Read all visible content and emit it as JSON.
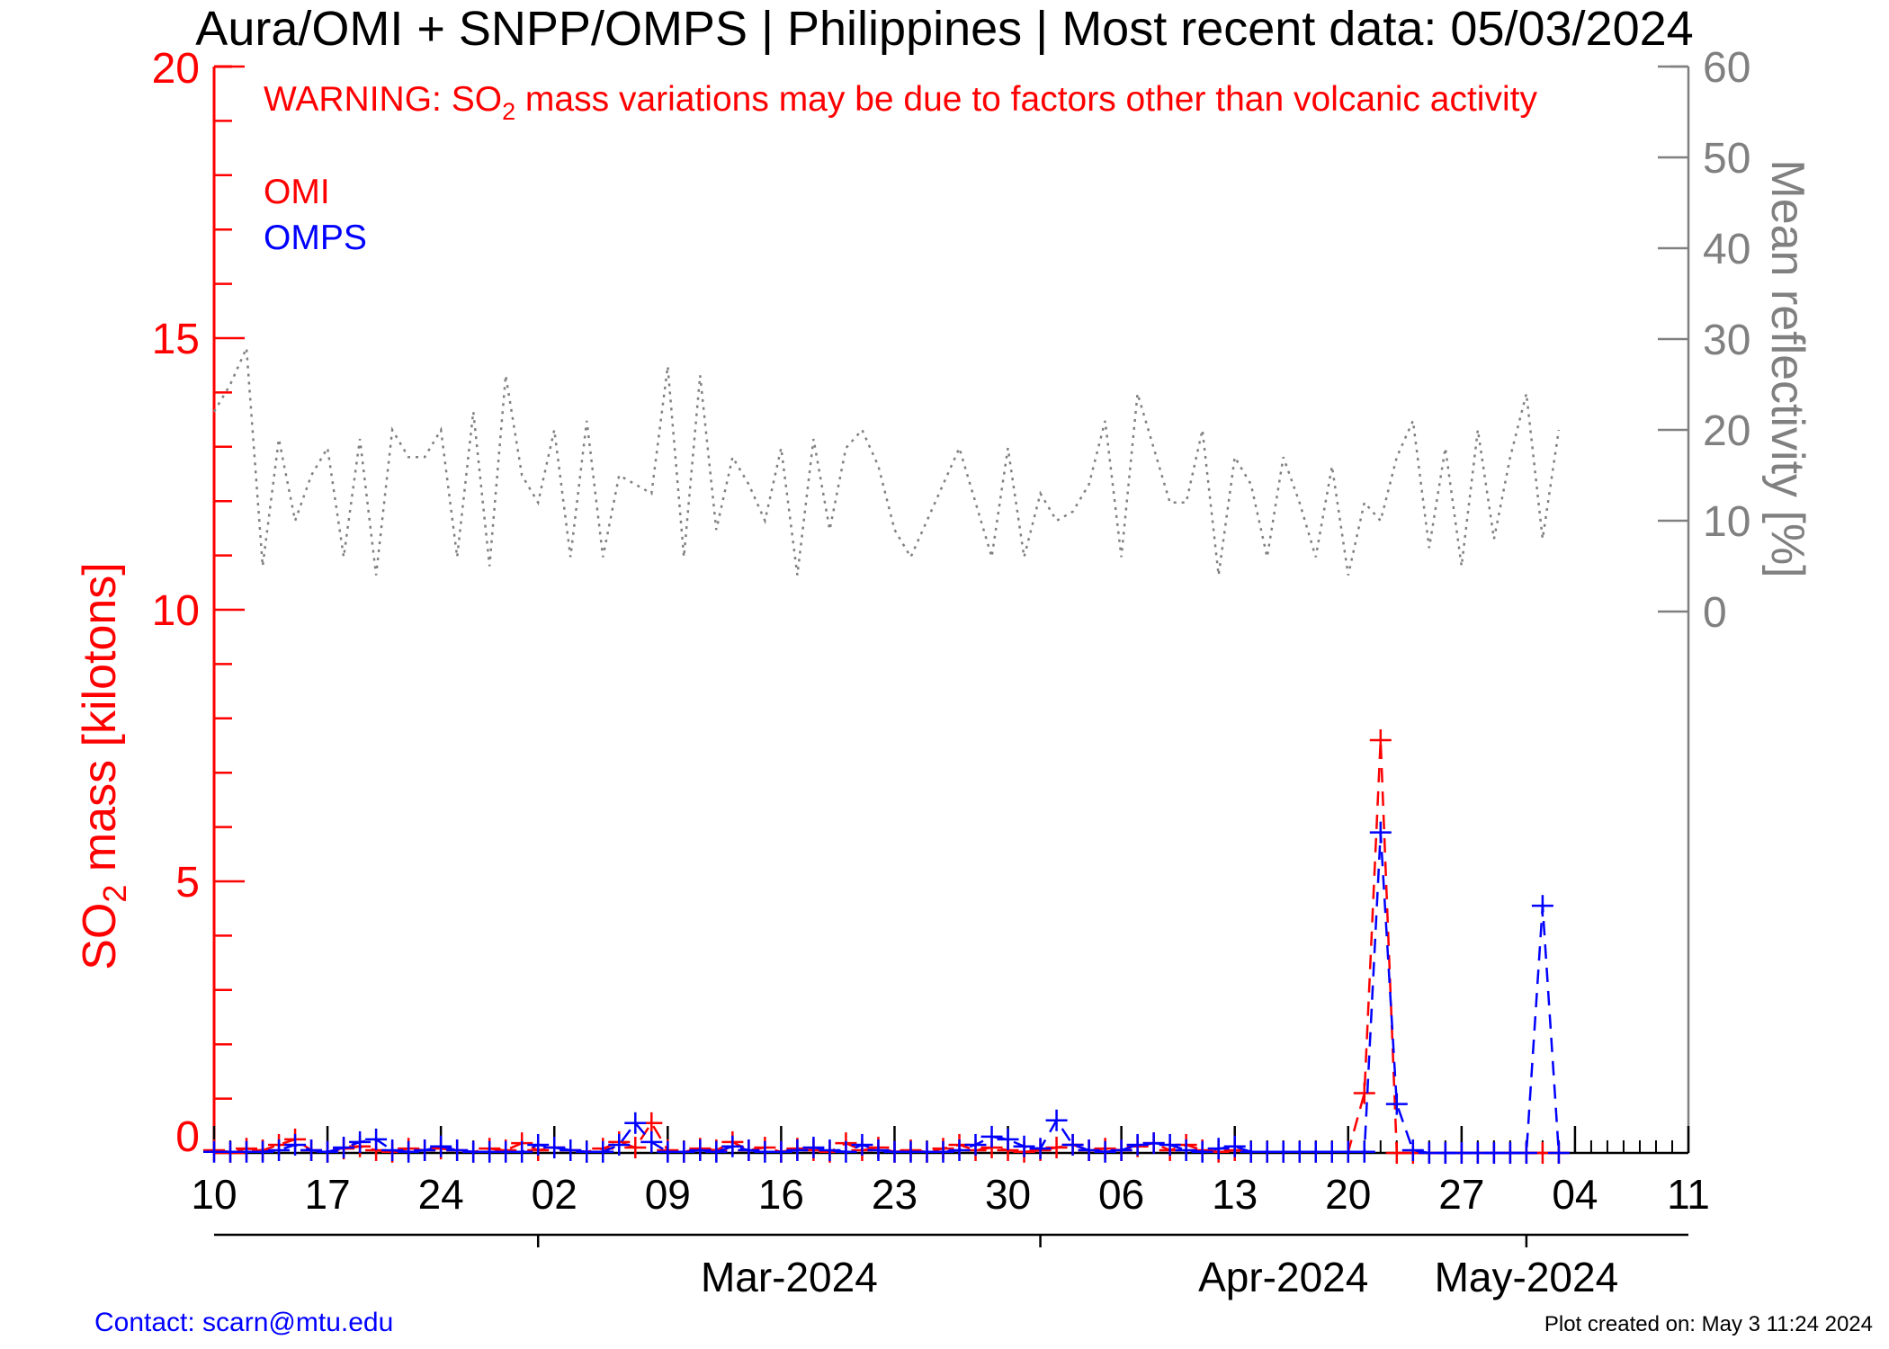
{
  "title": "Aura/OMI + SNPP/OMPS | Philippines | Most recent data: 05/03/2024",
  "warning": {
    "prefix": "WARNING: SO",
    "subscript": "2",
    "suffix": " mass variations may be due to factors other than volcanic activity"
  },
  "footer": {
    "contact": "Contact: scarn@mtu.edu",
    "created": "Plot created on: May  3 11:24 2024"
  },
  "colors": {
    "omi": "#ff0000",
    "omps": "#0000ff",
    "reflectivity": "#808080",
    "axis": "#000000"
  },
  "chart_data": {
    "type": "line",
    "x_axis": {
      "start": "2024-02-10",
      "end": "2024-05-11",
      "tick_labels": [
        "10",
        "17",
        "24",
        "02",
        "09",
        "16",
        "23",
        "30",
        "06",
        "13",
        "20",
        "27",
        "04",
        "11"
      ],
      "tick_dates": [
        "2024-02-10",
        "2024-02-17",
        "2024-02-24",
        "2024-03-02",
        "2024-03-09",
        "2024-03-16",
        "2024-03-23",
        "2024-03-30",
        "2024-04-06",
        "2024-04-13",
        "2024-04-20",
        "2024-04-27",
        "2024-05-04",
        "2024-05-11"
      ],
      "months": [
        {
          "label": "Mar-2024",
          "boundary": "2024-03-01"
        },
        {
          "label": "Apr-2024",
          "boundary": "2024-04-01"
        },
        {
          "label": "May-2024",
          "boundary": "2024-05-01"
        }
      ]
    },
    "y_left": {
      "label_prefix": "SO",
      "label_subscript": "2",
      "label_suffix": " mass [kilotons]",
      "ylim": [
        0,
        20
      ],
      "ticks": [
        0,
        5,
        10,
        15,
        20
      ]
    },
    "y_right": {
      "label": "Mean reflectivity [%]",
      "ylim": [
        0,
        60
      ],
      "ticks": [
        0,
        10,
        20,
        30,
        40,
        50,
        60
      ]
    },
    "series": [
      {
        "name": "OMI",
        "axis": "left",
        "style": "dashed",
        "x": [
          "2024-02-10",
          "2024-02-11",
          "2024-02-12",
          "2024-02-13",
          "2024-02-14",
          "2024-02-15",
          "2024-02-16",
          "2024-02-17",
          "2024-02-18",
          "2024-02-19",
          "2024-02-20",
          "2024-02-21",
          "2024-02-22",
          "2024-02-23",
          "2024-02-24",
          "2024-02-25",
          "2024-02-26",
          "2024-02-27",
          "2024-02-28",
          "2024-02-29",
          "2024-03-01",
          "2024-03-02",
          "2024-03-03",
          "2024-03-04",
          "2024-03-05",
          "2024-03-06",
          "2024-03-07",
          "2024-03-08",
          "2024-03-09",
          "2024-03-10",
          "2024-03-11",
          "2024-03-12",
          "2024-03-13",
          "2024-03-14",
          "2024-03-15",
          "2024-03-16",
          "2024-03-17",
          "2024-03-18",
          "2024-03-19",
          "2024-03-20",
          "2024-03-21",
          "2024-03-22",
          "2024-03-23",
          "2024-03-24",
          "2024-03-25",
          "2024-03-26",
          "2024-03-27",
          "2024-03-28",
          "2024-03-29",
          "2024-03-30",
          "2024-03-31",
          "2024-04-01",
          "2024-04-02",
          "2024-04-03",
          "2024-04-04",
          "2024-04-05",
          "2024-04-06",
          "2024-04-07",
          "2024-04-08",
          "2024-04-09",
          "2024-04-10",
          "2024-04-11",
          "2024-04-12",
          "2024-04-13",
          "2024-04-14",
          "2024-04-15",
          "2024-04-16",
          "2024-04-17",
          "2024-04-18",
          "2024-04-19",
          "2024-04-20",
          "2024-04-21",
          "2024-04-22",
          "2024-04-23",
          "2024-04-24",
          "2024-04-25",
          "2024-04-26",
          "2024-04-27",
          "2024-04-28",
          "2024-04-29",
          "2024-04-30",
          "2024-05-01",
          "2024-05-02",
          "2024-05-03"
        ],
        "values": [
          0.05,
          0.02,
          0.08,
          0.05,
          0.15,
          0.25,
          0.05,
          0.02,
          0.08,
          0.12,
          0.05,
          0.02,
          0.08,
          0.05,
          0.08,
          0.05,
          0.02,
          0.08,
          0.05,
          0.18,
          0.05,
          0.1,
          0.05,
          0.02,
          0.08,
          0.2,
          0.1,
          0.55,
          0.05,
          0.02,
          0.08,
          0.05,
          0.2,
          0.05,
          0.1,
          0.02,
          0.08,
          0.05,
          0.02,
          0.18,
          0.05,
          0.1,
          0.02,
          0.05,
          0.02,
          0.08,
          0.15,
          0.05,
          0.1,
          0.05,
          0.02,
          0.05,
          0.1,
          0.15,
          0.05,
          0.08,
          0.05,
          0.12,
          0.18,
          0.05,
          0.15,
          0.05,
          0.02,
          0.05,
          0.02,
          0.02,
          0.02,
          0.02,
          0.02,
          0.02,
          0.02,
          1.1,
          7.6,
          0.0,
          0.0,
          0.0,
          0.0,
          0.0,
          0.0,
          0.0,
          0.0,
          0.0,
          0.0,
          0.0
        ]
      },
      {
        "name": "OMPS",
        "axis": "left",
        "style": "dashed",
        "x": [
          "2024-02-10",
          "2024-02-11",
          "2024-02-12",
          "2024-02-13",
          "2024-02-14",
          "2024-02-15",
          "2024-02-16",
          "2024-02-17",
          "2024-02-18",
          "2024-02-19",
          "2024-02-20",
          "2024-02-21",
          "2024-02-22",
          "2024-02-23",
          "2024-02-24",
          "2024-02-25",
          "2024-02-26",
          "2024-02-27",
          "2024-02-28",
          "2024-02-29",
          "2024-03-01",
          "2024-03-02",
          "2024-03-03",
          "2024-03-04",
          "2024-03-05",
          "2024-03-06",
          "2024-03-07",
          "2024-03-08",
          "2024-03-09",
          "2024-03-10",
          "2024-03-11",
          "2024-03-12",
          "2024-03-13",
          "2024-03-14",
          "2024-03-15",
          "2024-03-16",
          "2024-03-17",
          "2024-03-18",
          "2024-03-19",
          "2024-03-20",
          "2024-03-21",
          "2024-03-22",
          "2024-03-23",
          "2024-03-24",
          "2024-03-25",
          "2024-03-26",
          "2024-03-27",
          "2024-03-28",
          "2024-03-29",
          "2024-03-30",
          "2024-03-31",
          "2024-04-01",
          "2024-04-02",
          "2024-04-03",
          "2024-04-04",
          "2024-04-05",
          "2024-04-06",
          "2024-04-07",
          "2024-04-08",
          "2024-04-09",
          "2024-04-10",
          "2024-04-11",
          "2024-04-12",
          "2024-04-13",
          "2024-04-14",
          "2024-04-15",
          "2024-04-16",
          "2024-04-17",
          "2024-04-18",
          "2024-04-19",
          "2024-04-20",
          "2024-04-21",
          "2024-04-22",
          "2024-04-23",
          "2024-04-24",
          "2024-04-25",
          "2024-04-26",
          "2024-04-27",
          "2024-04-28",
          "2024-04-29",
          "2024-04-30",
          "2024-05-01",
          "2024-05-02",
          "2024-05-03"
        ],
        "values": [
          0.02,
          0.02,
          0.02,
          0.02,
          0.05,
          0.15,
          0.05,
          0.02,
          0.1,
          0.2,
          0.25,
          0.05,
          0.02,
          0.05,
          0.12,
          0.05,
          0.02,
          0.02,
          0.02,
          0.02,
          0.15,
          0.1,
          0.05,
          0.02,
          0.02,
          0.15,
          0.55,
          0.2,
          0.02,
          0.02,
          0.05,
          0.02,
          0.12,
          0.05,
          0.02,
          0.02,
          0.05,
          0.1,
          0.05,
          0.02,
          0.15,
          0.05,
          0.02,
          0.02,
          0.02,
          0.02,
          0.05,
          0.15,
          0.3,
          0.25,
          0.12,
          0.08,
          0.6,
          0.15,
          0.05,
          0.02,
          0.05,
          0.15,
          0.18,
          0.15,
          0.05,
          0.02,
          0.08,
          0.12,
          0.02,
          0.02,
          0.02,
          0.02,
          0.02,
          0.02,
          0.02,
          0.02,
          5.9,
          0.9,
          0.05,
          0.0,
          0.0,
          0.0,
          0.0,
          0.0,
          0.0,
          0.0,
          4.55,
          0.0
        ]
      },
      {
        "name": "Mean reflectivity",
        "axis": "right",
        "style": "dotted",
        "x": [
          "2024-02-10",
          "2024-02-11",
          "2024-02-12",
          "2024-02-13",
          "2024-02-14",
          "2024-02-15",
          "2024-02-16",
          "2024-02-17",
          "2024-02-18",
          "2024-02-19",
          "2024-02-20",
          "2024-02-21",
          "2024-02-22",
          "2024-02-23",
          "2024-02-24",
          "2024-02-25",
          "2024-02-26",
          "2024-02-27",
          "2024-02-28",
          "2024-02-29",
          "2024-03-01",
          "2024-03-02",
          "2024-03-03",
          "2024-03-04",
          "2024-03-05",
          "2024-03-06",
          "2024-03-07",
          "2024-03-08",
          "2024-03-09",
          "2024-03-10",
          "2024-03-11",
          "2024-03-12",
          "2024-03-13",
          "2024-03-14",
          "2024-03-15",
          "2024-03-16",
          "2024-03-17",
          "2024-03-18",
          "2024-03-19",
          "2024-03-20",
          "2024-03-21",
          "2024-03-22",
          "2024-03-23",
          "2024-03-24",
          "2024-03-25",
          "2024-03-26",
          "2024-03-27",
          "2024-03-28",
          "2024-03-29",
          "2024-03-30",
          "2024-03-31",
          "2024-04-01",
          "2024-04-02",
          "2024-04-03",
          "2024-04-04",
          "2024-04-05",
          "2024-04-06",
          "2024-04-07",
          "2024-04-08",
          "2024-04-09",
          "2024-04-10",
          "2024-04-11",
          "2024-04-12",
          "2024-04-13",
          "2024-04-14",
          "2024-04-15",
          "2024-04-16",
          "2024-04-17",
          "2024-04-18",
          "2024-04-19",
          "2024-04-20",
          "2024-04-21",
          "2024-04-22",
          "2024-04-23",
          "2024-04-24",
          "2024-04-25",
          "2024-04-26",
          "2024-04-27",
          "2024-04-28",
          "2024-04-29",
          "2024-04-30",
          "2024-05-01",
          "2024-05-02",
          "2024-05-03"
        ],
        "values": [
          22,
          25,
          29,
          5,
          19,
          10,
          15,
          18,
          6,
          19,
          4,
          20,
          17,
          17,
          20,
          6,
          22,
          5,
          26,
          15,
          12,
          20,
          6,
          21,
          6,
          15,
          14,
          13,
          27,
          6,
          26,
          9,
          17,
          14,
          10,
          18,
          4,
          19,
          9,
          18,
          20,
          16,
          9,
          6,
          10,
          14,
          18,
          12,
          6,
          18,
          6,
          13,
          10,
          11,
          14,
          21,
          6,
          24,
          18,
          12,
          12,
          20,
          4,
          17,
          14,
          6,
          17,
          12,
          6,
          16,
          4,
          12,
          10,
          17,
          21,
          7,
          18,
          5,
          20,
          8,
          17,
          24,
          8,
          20
        ]
      }
    ]
  }
}
